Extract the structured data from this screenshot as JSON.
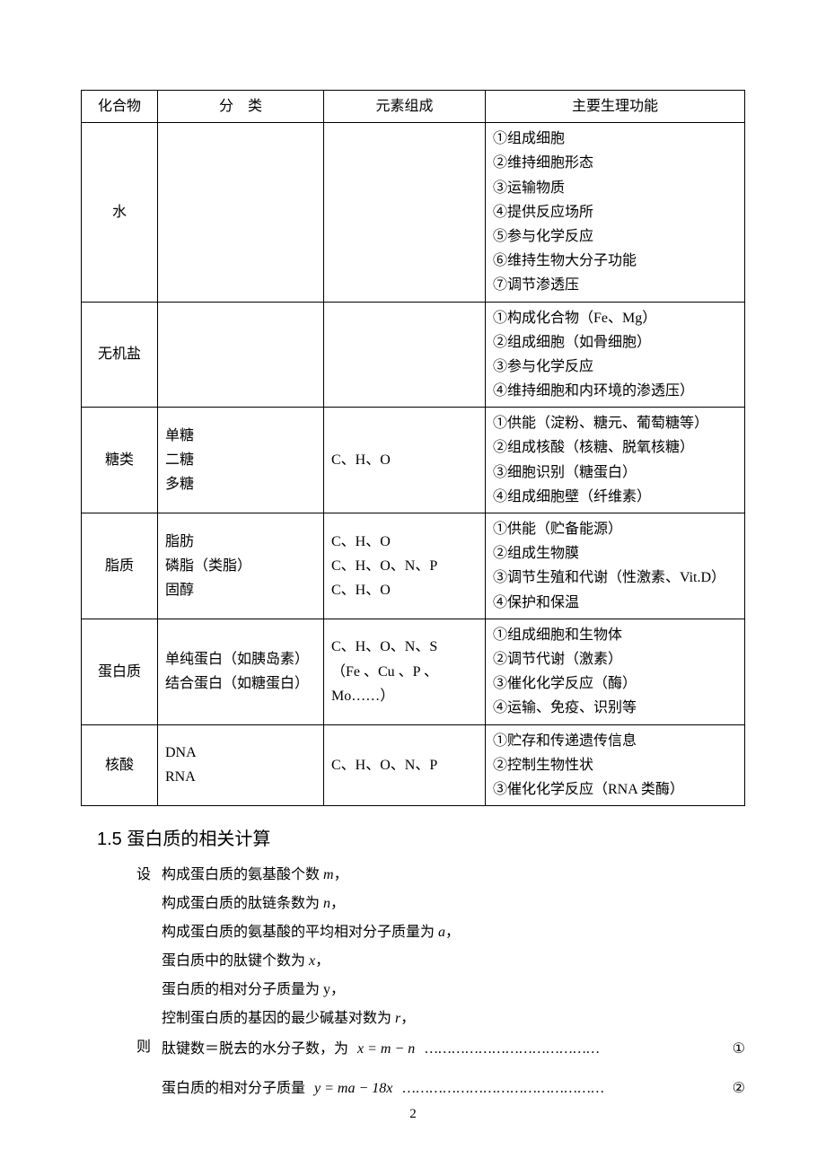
{
  "table": {
    "headers": [
      "化合物",
      "分　类",
      "元素组成",
      "主要生理功能"
    ],
    "rows": [
      {
        "compound": "水",
        "category": "",
        "elements": "",
        "functions": [
          "①组成细胞",
          "②维持细胞形态",
          "③运输物质",
          "④提供反应场所",
          "⑤参与化学反应",
          "⑥维持生物大分子功能",
          "⑦调节渗透压"
        ]
      },
      {
        "compound": "无机盐",
        "category": "",
        "elements": "",
        "functions": [
          "①构成化合物（Fe、Mg）",
          "②组成细胞（如骨细胞）",
          "③参与化学反应",
          "④维持细胞和内环境的渗透压）"
        ]
      },
      {
        "compound": "糖类",
        "category": [
          "单糖",
          "二糖",
          "多糖"
        ],
        "elements": "C、H、O",
        "functions": [
          "①供能（淀粉、糖元、葡萄糖等）",
          "②组成核酸（核糖、脱氧核糖）",
          "③细胞识别（糖蛋白）",
          "④组成细胞壁（纤维素）"
        ]
      },
      {
        "compound": "脂质",
        "category": [
          "脂肪",
          "磷脂（类脂）",
          "固醇"
        ],
        "elements": [
          "C、H、O",
          "C、H、O、N、P",
          "C、H、O"
        ],
        "functions": [
          "①供能（贮备能源）",
          "②组成生物膜",
          "③调节生殖和代谢（性激素、Vit.D）",
          "④保护和保温"
        ]
      },
      {
        "compound": "蛋白质",
        "category": [
          "单纯蛋白（如胰岛素）",
          "结合蛋白（如糖蛋白）"
        ],
        "elements": [
          "C、H、O、N、S",
          "（Fe 、Cu 、P 、Mo……）"
        ],
        "functions": [
          "①组成细胞和生物体",
          "②调节代谢（激素）",
          "③催化化学反应（酶）",
          "④运输、免疫、识别等"
        ]
      },
      {
        "compound": "核酸",
        "category": [
          "DNA",
          "RNA"
        ],
        "elements": "C、H、O、N、P",
        "functions": [
          "①贮存和传递遗传信息",
          "②控制生物性状",
          "③催化化学反应（RNA 类酶）"
        ]
      }
    ]
  },
  "section_title": "1.5 蛋白质的相关计算",
  "calc": {
    "label_set": "设",
    "label_then": "则",
    "lines": [
      "构成蛋白质的氨基酸个数 <i>m</i>，",
      "构成蛋白质的肽链条数为 <i>n</i>，",
      "构成蛋白质的氨基酸的平均相对分子质量为 <i>a</i>，",
      "蛋白质中的肽键个数为 <i>x</i>，",
      "蛋白质的相对分子质量为 y，",
      "控制蛋白质的基因的最少碱基对数为 <i>r</i>，"
    ],
    "formula1_text": "肽键数＝脱去的水分子数，为",
    "formula1_math": "x = m − n",
    "formula1_num": "①",
    "formula2_text": "蛋白质的相对分子质量",
    "formula2_math": "y = ma − 18x",
    "formula2_num": "②"
  },
  "page_number": "2",
  "colors": {
    "text": "#000000",
    "background": "#ffffff",
    "border": "#000000"
  },
  "fonts": {
    "body_size": 16,
    "title_size": 20,
    "line_height": 1.7
  }
}
